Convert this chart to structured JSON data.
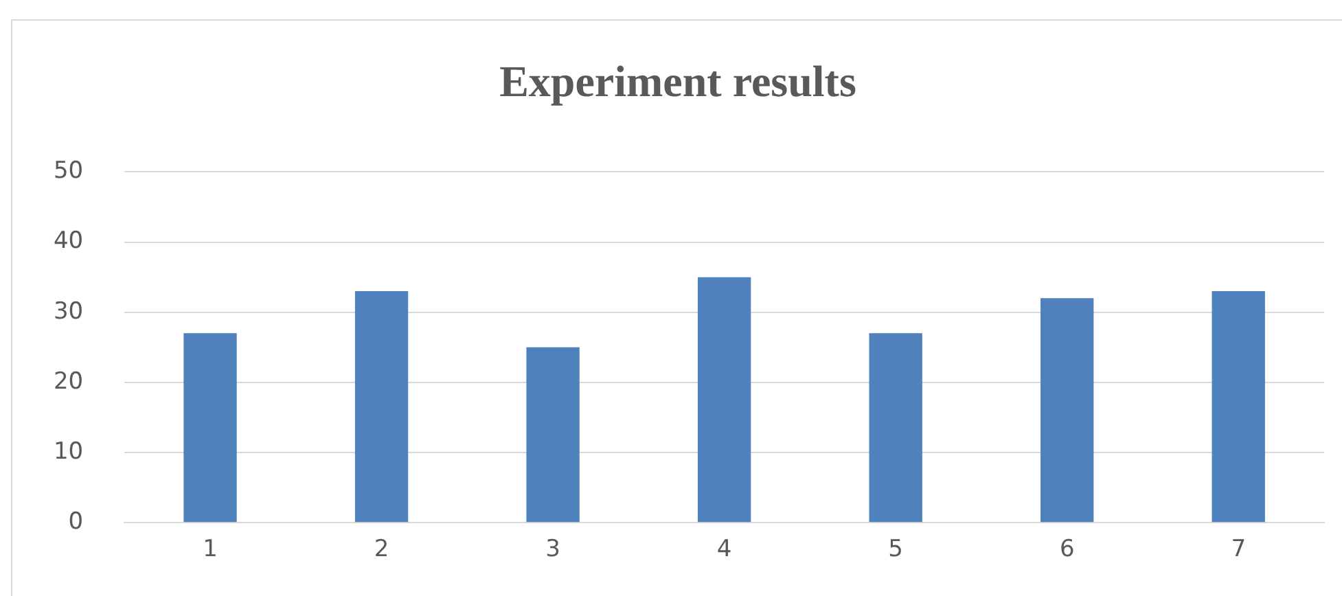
{
  "chart_data": {
    "type": "bar",
    "title": "Experiment results",
    "categories": [
      "1",
      "2",
      "3",
      "4",
      "5",
      "6",
      "7"
    ],
    "values": [
      27,
      33,
      25,
      35,
      27,
      32,
      33
    ],
    "color": "#4f81bd",
    "ylim": [
      0,
      50
    ],
    "yticks": [
      0,
      10,
      20,
      30,
      40,
      50
    ],
    "grid": "y",
    "legend": false
  }
}
